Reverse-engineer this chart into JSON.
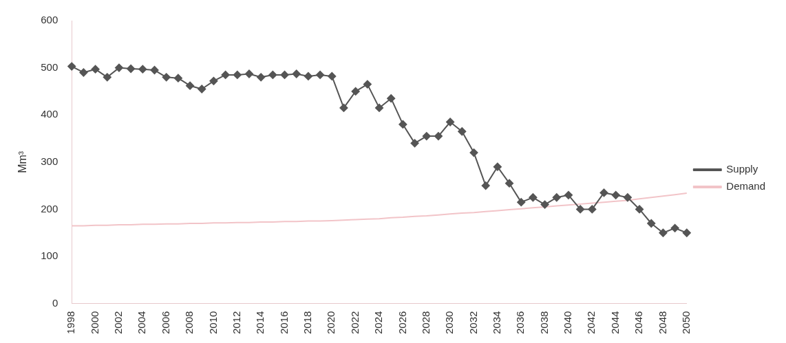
{
  "chart_data": {
    "type": "line",
    "ylabel": "Mm³",
    "categories": [
      "1998",
      null,
      "2000",
      null,
      "2002",
      null,
      "2004",
      null,
      "2006",
      null,
      "2008",
      null,
      "2010",
      null,
      "2012",
      null,
      "2014",
      null,
      "2016",
      null,
      "2018",
      null,
      "2020",
      null,
      "2022",
      null,
      "2024",
      null,
      "2026",
      null,
      "2028",
      null,
      "2030",
      null,
      "2032",
      null,
      "2034",
      null,
      "2036",
      null,
      "2038",
      null,
      "2040",
      null,
      "2042",
      null,
      "2044",
      null,
      "2046",
      null,
      "2048",
      null,
      "2050"
    ],
    "series": [
      {
        "name": "Supply",
        "color": "#555555",
        "marker": "diamond",
        "values": [
          503,
          490,
          497,
          480,
          500,
          498,
          497,
          495,
          480,
          478,
          462,
          455,
          472,
          485,
          485,
          487,
          480,
          485,
          485,
          487,
          482,
          485,
          482,
          415,
          450,
          465,
          415,
          435,
          380,
          340,
          355,
          355,
          385,
          365,
          320,
          250,
          290,
          255,
          215,
          225,
          210,
          225,
          230,
          200,
          200,
          235,
          230,
          225,
          200,
          170,
          150,
          160,
          150
        ]
      },
      {
        "name": "Demand",
        "color": "#f2c4c8",
        "marker": "none",
        "values": [
          165,
          165,
          166,
          166,
          167,
          167,
          168,
          168,
          169,
          169,
          170,
          170,
          171,
          171,
          172,
          172,
          173,
          173,
          174,
          174,
          175,
          175,
          176,
          177,
          178,
          179,
          180,
          182,
          183,
          185,
          186,
          188,
          190,
          192,
          193,
          195,
          197,
          199,
          201,
          203,
          205,
          207,
          209,
          211,
          213,
          215,
          217,
          219,
          222,
          225,
          228,
          231,
          234
        ]
      }
    ],
    "ylim": [
      0,
      600
    ],
    "yticks": [
      0,
      100,
      200,
      300,
      400,
      500,
      600
    ],
    "grid": false,
    "legend": "right"
  }
}
